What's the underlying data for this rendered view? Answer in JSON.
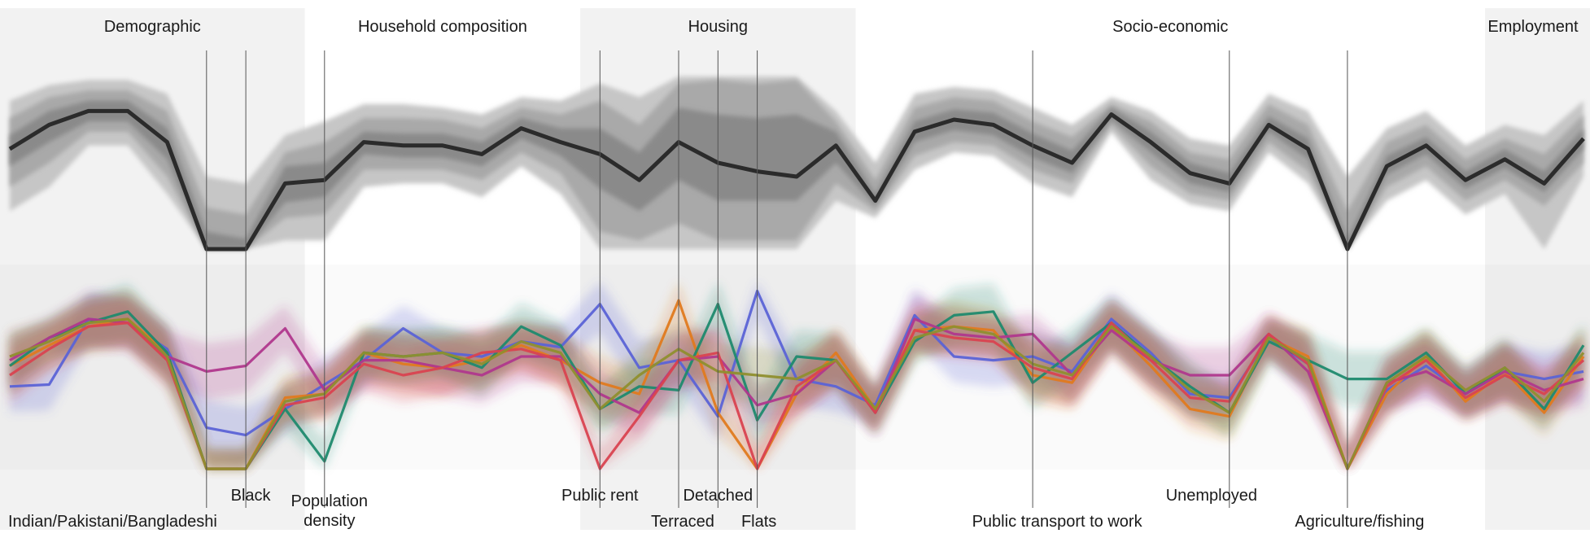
{
  "chart_data": {
    "type": "line",
    "title": "",
    "groups": [
      {
        "label": "Demographic",
        "from": 0,
        "to": 8,
        "shaded": true
      },
      {
        "label": "Household composition",
        "from": 8,
        "to": 15,
        "shaded": false
      },
      {
        "label": "Housing",
        "from": 15,
        "to": 22,
        "shaded": true
      },
      {
        "label": "Socio-economic",
        "from": 22,
        "to": 38,
        "shaded": false
      },
      {
        "label": "Employment",
        "from": 38,
        "to": 41,
        "shaded": true
      }
    ],
    "variable_count": 41,
    "highlighted_variables": [
      {
        "index": 5,
        "label": "Indian/Pakistani/Bangladeshi"
      },
      {
        "index": 6,
        "label": "Black"
      },
      {
        "index": 8,
        "label": "Population density"
      },
      {
        "index": 15,
        "label": "Public rent"
      },
      {
        "index": 17,
        "label": "Terraced"
      },
      {
        "index": 18,
        "label": "Detached"
      },
      {
        "index": 19,
        "label": "Flats"
      },
      {
        "index": 26,
        "label": "Public transport to work"
      },
      {
        "index": 31,
        "label": "Unemployed"
      },
      {
        "index": 34,
        "label": "Agriculture/fishing"
      }
    ],
    "ylim": [
      0,
      1
    ],
    "overall": {
      "median": [
        0.58,
        0.72,
        0.8,
        0.8,
        0.62,
        0.0,
        0.0,
        0.38,
        0.4,
        0.62,
        0.6,
        0.6,
        0.55,
        0.7,
        0.62,
        0.55,
        0.4,
        0.62,
        0.5,
        0.45,
        0.42,
        0.6,
        0.28,
        0.68,
        0.75,
        0.72,
        0.6,
        0.5,
        0.78,
        0.62,
        0.44,
        0.38,
        0.72,
        0.58,
        0.0,
        0.48,
        0.6,
        0.4,
        0.52,
        0.38,
        0.64
      ],
      "bands": [
        {
          "lower": [
            0.48,
            0.62,
            0.74,
            0.74,
            0.52,
            0.0,
            0.0,
            0.27,
            0.3,
            0.55,
            0.53,
            0.53,
            0.48,
            0.64,
            0.54,
            0.35,
            0.22,
            0.4,
            0.28,
            0.28,
            0.28,
            0.5,
            0.25,
            0.62,
            0.69,
            0.66,
            0.53,
            0.44,
            0.75,
            0.56,
            0.38,
            0.33,
            0.68,
            0.52,
            0.0,
            0.43,
            0.55,
            0.35,
            0.47,
            0.33,
            0.58
          ],
          "upper": [
            0.66,
            0.8,
            0.86,
            0.86,
            0.7,
            0.1,
            0.06,
            0.48,
            0.5,
            0.68,
            0.67,
            0.67,
            0.62,
            0.76,
            0.7,
            0.7,
            0.56,
            0.82,
            0.78,
            0.76,
            0.78,
            0.68,
            0.32,
            0.74,
            0.81,
            0.79,
            0.67,
            0.57,
            0.82,
            0.68,
            0.5,
            0.44,
            0.77,
            0.64,
            0.06,
            0.54,
            0.65,
            0.45,
            0.58,
            0.45,
            0.7
          ]
        },
        {
          "lower": [
            0.36,
            0.5,
            0.68,
            0.68,
            0.42,
            0.0,
            0.0,
            0.18,
            0.2,
            0.46,
            0.46,
            0.46,
            0.4,
            0.56,
            0.44,
            0.1,
            0.05,
            0.15,
            0.05,
            0.05,
            0.05,
            0.38,
            0.22,
            0.54,
            0.62,
            0.6,
            0.46,
            0.38,
            0.72,
            0.48,
            0.32,
            0.28,
            0.62,
            0.45,
            0.0,
            0.36,
            0.48,
            0.28,
            0.4,
            0.25,
            0.5
          ],
          "upper": [
            0.76,
            0.88,
            0.92,
            0.92,
            0.8,
            0.24,
            0.2,
            0.56,
            0.62,
            0.76,
            0.76,
            0.75,
            0.7,
            0.82,
            0.78,
            0.86,
            0.72,
            0.96,
            0.98,
            0.96,
            0.98,
            0.74,
            0.4,
            0.82,
            0.88,
            0.86,
            0.74,
            0.65,
            0.84,
            0.74,
            0.56,
            0.52,
            0.84,
            0.72,
            0.22,
            0.62,
            0.72,
            0.52,
            0.64,
            0.55,
            0.78
          ]
        },
        {
          "lower": [
            0.22,
            0.36,
            0.6,
            0.6,
            0.32,
            0.0,
            0.0,
            0.05,
            0.05,
            0.36,
            0.38,
            0.38,
            0.3,
            0.48,
            0.32,
            0.0,
            0.0,
            0.0,
            0.0,
            0.0,
            0.0,
            0.28,
            0.18,
            0.46,
            0.56,
            0.54,
            0.38,
            0.3,
            0.68,
            0.4,
            0.26,
            0.22,
            0.56,
            0.38,
            0.0,
            0.28,
            0.4,
            0.2,
            0.32,
            0.0,
            0.42
          ],
          "upper": [
            0.86,
            0.95,
            0.98,
            0.98,
            0.9,
            0.42,
            0.38,
            0.66,
            0.74,
            0.84,
            0.84,
            0.82,
            0.78,
            0.88,
            0.86,
            0.96,
            0.88,
            1.0,
            1.0,
            1.0,
            1.0,
            0.8,
            0.5,
            0.9,
            0.94,
            0.92,
            0.82,
            0.72,
            0.88,
            0.8,
            0.64,
            0.6,
            0.9,
            0.8,
            0.42,
            0.7,
            0.8,
            0.6,
            0.72,
            0.66,
            0.86
          ]
        }
      ]
    },
    "series": [
      {
        "color": "#5b63d6",
        "values": [
          0.44,
          0.45,
          0.8,
          0.78,
          0.64,
          0.22,
          0.18,
          0.32,
          0.45,
          0.58,
          0.75,
          0.62,
          0.6,
          0.68,
          0.65,
          0.88,
          0.54,
          0.58,
          0.28,
          0.95,
          0.48,
          0.44,
          0.34,
          0.82,
          0.6,
          0.58,
          0.6,
          0.52,
          0.8,
          0.62,
          0.4,
          0.38,
          0.7,
          0.56,
          0.0,
          0.42,
          0.55,
          0.4,
          0.52,
          0.48,
          0.52
        ]
      },
      {
        "color": "#e07a1f",
        "values": [
          0.55,
          0.66,
          0.76,
          0.8,
          0.62,
          0.0,
          0.0,
          0.38,
          0.4,
          0.62,
          0.56,
          0.54,
          0.58,
          0.66,
          0.58,
          0.46,
          0.4,
          0.9,
          0.3,
          0.0,
          0.4,
          0.62,
          0.32,
          0.74,
          0.76,
          0.74,
          0.5,
          0.46,
          0.76,
          0.55,
          0.32,
          0.28,
          0.7,
          0.6,
          0.0,
          0.4,
          0.6,
          0.36,
          0.52,
          0.3,
          0.6
        ]
      },
      {
        "color": "#1f8a6e",
        "values": [
          0.55,
          0.7,
          0.78,
          0.84,
          0.62,
          0.0,
          0.0,
          0.32,
          0.04,
          0.62,
          0.6,
          0.62,
          0.54,
          0.76,
          0.66,
          0.32,
          0.44,
          0.42,
          0.88,
          0.26,
          0.6,
          0.58,
          0.3,
          0.68,
          0.82,
          0.84,
          0.46,
          0.62,
          0.78,
          0.6,
          0.44,
          0.3,
          0.68,
          0.58,
          0.48,
          0.48,
          0.62,
          0.4,
          0.54,
          0.32,
          0.66
        ]
      },
      {
        "color": "#b0388d",
        "values": [
          0.58,
          0.7,
          0.8,
          0.78,
          0.6,
          0.52,
          0.55,
          0.75,
          0.42,
          0.58,
          0.58,
          0.54,
          0.5,
          0.6,
          0.6,
          0.4,
          0.3,
          0.58,
          0.6,
          0.34,
          0.4,
          0.58,
          0.3,
          0.8,
          0.72,
          0.7,
          0.72,
          0.5,
          0.74,
          0.58,
          0.5,
          0.5,
          0.72,
          0.52,
          0.0,
          0.46,
          0.52,
          0.4,
          0.52,
          0.42,
          0.48
        ]
      },
      {
        "color": "#d94350",
        "values": [
          0.5,
          0.64,
          0.76,
          0.78,
          0.58,
          0.0,
          0.0,
          0.34,
          0.38,
          0.56,
          0.5,
          0.54,
          0.62,
          0.64,
          0.58,
          0.0,
          0.28,
          0.58,
          0.62,
          0.0,
          0.44,
          0.58,
          0.3,
          0.74,
          0.7,
          0.68,
          0.54,
          0.48,
          0.78,
          0.58,
          0.38,
          0.36,
          0.72,
          0.56,
          0.0,
          0.44,
          0.58,
          0.38,
          0.5,
          0.4,
          0.58
        ]
      },
      {
        "color": "#8f8f2e",
        "values": [
          0.6,
          0.68,
          0.78,
          0.8,
          0.6,
          0.0,
          0.0,
          0.36,
          0.4,
          0.62,
          0.6,
          0.62,
          0.56,
          0.68,
          0.62,
          0.32,
          0.5,
          0.64,
          0.52,
          0.5,
          0.48,
          0.58,
          0.32,
          0.7,
          0.76,
          0.72,
          0.56,
          0.5,
          0.76,
          0.6,
          0.42,
          0.3,
          0.7,
          0.58,
          0.0,
          0.46,
          0.6,
          0.42,
          0.54,
          0.36,
          0.62
        ]
      }
    ]
  }
}
